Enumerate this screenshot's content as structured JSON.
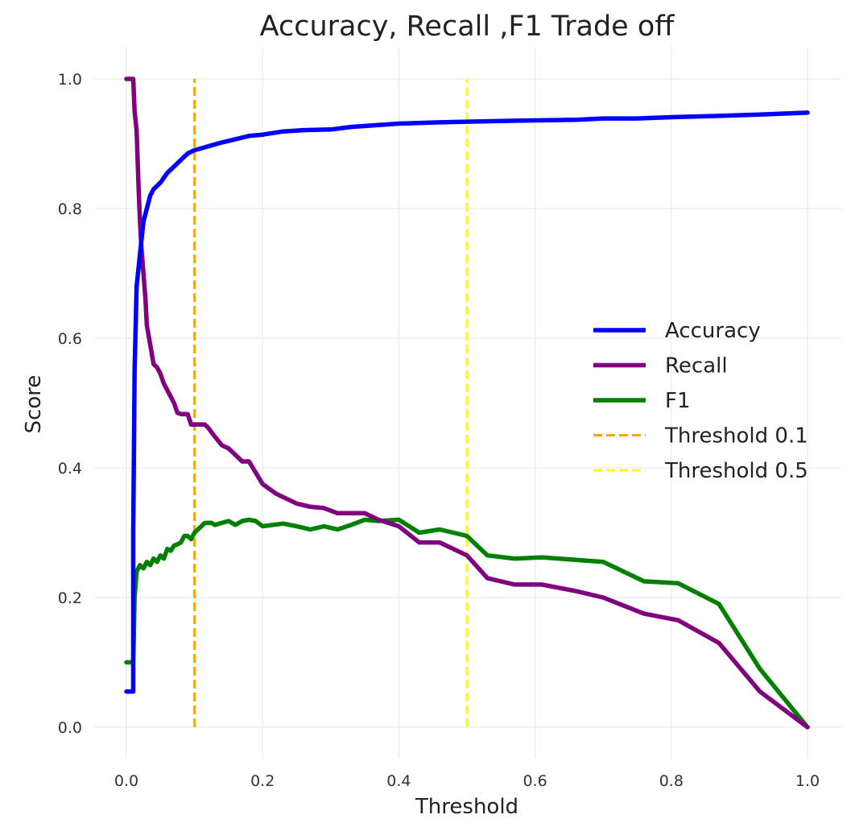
{
  "chart_data": {
    "type": "line",
    "title": "Accuracy, Recall ,F1 Trade off",
    "xlabel": "Threshold",
    "ylabel": "Score",
    "xlim": [
      0.0,
      1.0
    ],
    "ylim": [
      0.0,
      1.0
    ],
    "xticks": [
      "0.0",
      "0.2",
      "0.4",
      "0.6",
      "0.8",
      "1.0"
    ],
    "yticks": [
      "0.0",
      "0.2",
      "0.4",
      "0.6",
      "0.8",
      "1.0"
    ],
    "grid": true,
    "legend_position": "center-right",
    "series": [
      {
        "name": "Accuracy",
        "color": "#0000ff",
        "style": "solid",
        "x": [
          0.0,
          0.01,
          0.01,
          0.012,
          0.015,
          0.02,
          0.025,
          0.03,
          0.035,
          0.04,
          0.05,
          0.06,
          0.07,
          0.08,
          0.09,
          0.1,
          0.11,
          0.12,
          0.14,
          0.16,
          0.18,
          0.2,
          0.23,
          0.26,
          0.3,
          0.33,
          0.37,
          0.4,
          0.46,
          0.5,
          0.55,
          0.6,
          0.66,
          0.7,
          0.75,
          0.8,
          0.87,
          0.93,
          1.0
        ],
        "y": [
          0.055,
          0.055,
          0.3,
          0.55,
          0.68,
          0.73,
          0.78,
          0.8,
          0.82,
          0.83,
          0.84,
          0.855,
          0.865,
          0.875,
          0.885,
          0.89,
          0.893,
          0.896,
          0.902,
          0.907,
          0.912,
          0.914,
          0.919,
          0.921,
          0.922,
          0.926,
          0.929,
          0.931,
          0.933,
          0.934,
          0.935,
          0.936,
          0.937,
          0.939,
          0.939,
          0.941,
          0.943,
          0.945,
          0.948
        ]
      },
      {
        "name": "Recall",
        "color": "#800080",
        "style": "solid",
        "x": [
          0.0,
          0.01,
          0.012,
          0.015,
          0.018,
          0.02,
          0.022,
          0.025,
          0.028,
          0.03,
          0.035,
          0.04,
          0.045,
          0.05,
          0.055,
          0.06,
          0.07,
          0.075,
          0.08,
          0.09,
          0.095,
          0.1,
          0.11,
          0.115,
          0.12,
          0.13,
          0.14,
          0.15,
          0.16,
          0.17,
          0.18,
          0.2,
          0.22,
          0.25,
          0.27,
          0.29,
          0.31,
          0.33,
          0.35,
          0.37,
          0.4,
          0.43,
          0.46,
          0.5,
          0.53,
          0.57,
          0.61,
          0.66,
          0.7,
          0.76,
          0.81,
          0.87,
          0.93,
          1.0
        ],
        "y": [
          1.0,
          1.0,
          0.95,
          0.92,
          0.83,
          0.78,
          0.74,
          0.7,
          0.66,
          0.62,
          0.59,
          0.56,
          0.555,
          0.545,
          0.53,
          0.52,
          0.5,
          0.485,
          0.483,
          0.483,
          0.467,
          0.467,
          0.467,
          0.467,
          0.462,
          0.448,
          0.435,
          0.43,
          0.42,
          0.41,
          0.41,
          0.375,
          0.36,
          0.345,
          0.34,
          0.338,
          0.33,
          0.33,
          0.33,
          0.32,
          0.31,
          0.285,
          0.285,
          0.265,
          0.23,
          0.22,
          0.22,
          0.21,
          0.2,
          0.175,
          0.165,
          0.13,
          0.055,
          0.0
        ]
      },
      {
        "name": "F1",
        "color": "#008000",
        "style": "solid",
        "x": [
          0.0,
          0.01,
          0.012,
          0.015,
          0.02,
          0.025,
          0.03,
          0.035,
          0.04,
          0.045,
          0.05,
          0.055,
          0.06,
          0.065,
          0.07,
          0.075,
          0.08,
          0.085,
          0.09,
          0.095,
          0.1,
          0.105,
          0.11,
          0.115,
          0.12,
          0.125,
          0.13,
          0.14,
          0.15,
          0.16,
          0.17,
          0.18,
          0.19,
          0.2,
          0.23,
          0.25,
          0.27,
          0.29,
          0.31,
          0.33,
          0.35,
          0.37,
          0.4,
          0.43,
          0.46,
          0.5,
          0.53,
          0.57,
          0.61,
          0.66,
          0.7,
          0.76,
          0.81,
          0.87,
          0.93,
          1.0
        ],
        "y": [
          0.1,
          0.1,
          0.2,
          0.24,
          0.25,
          0.245,
          0.255,
          0.25,
          0.26,
          0.255,
          0.265,
          0.26,
          0.275,
          0.272,
          0.28,
          0.282,
          0.285,
          0.295,
          0.295,
          0.29,
          0.3,
          0.305,
          0.31,
          0.315,
          0.315,
          0.315,
          0.312,
          0.315,
          0.318,
          0.312,
          0.318,
          0.32,
          0.318,
          0.31,
          0.314,
          0.31,
          0.305,
          0.31,
          0.305,
          0.312,
          0.32,
          0.318,
          0.32,
          0.3,
          0.305,
          0.295,
          0.265,
          0.26,
          0.262,
          0.258,
          0.255,
          0.225,
          0.222,
          0.19,
          0.09,
          0.0
        ]
      },
      {
        "name": "Threshold 0.1",
        "color": "#ffa500",
        "style": "dashed",
        "x": [
          0.1,
          0.1
        ],
        "y": [
          0.0,
          1.0
        ]
      },
      {
        "name": "Threshold 0.5",
        "color": "#ffff00",
        "style": "dashed",
        "x": [
          0.5,
          0.5
        ],
        "y": [
          0.0,
          1.0
        ]
      }
    ]
  }
}
